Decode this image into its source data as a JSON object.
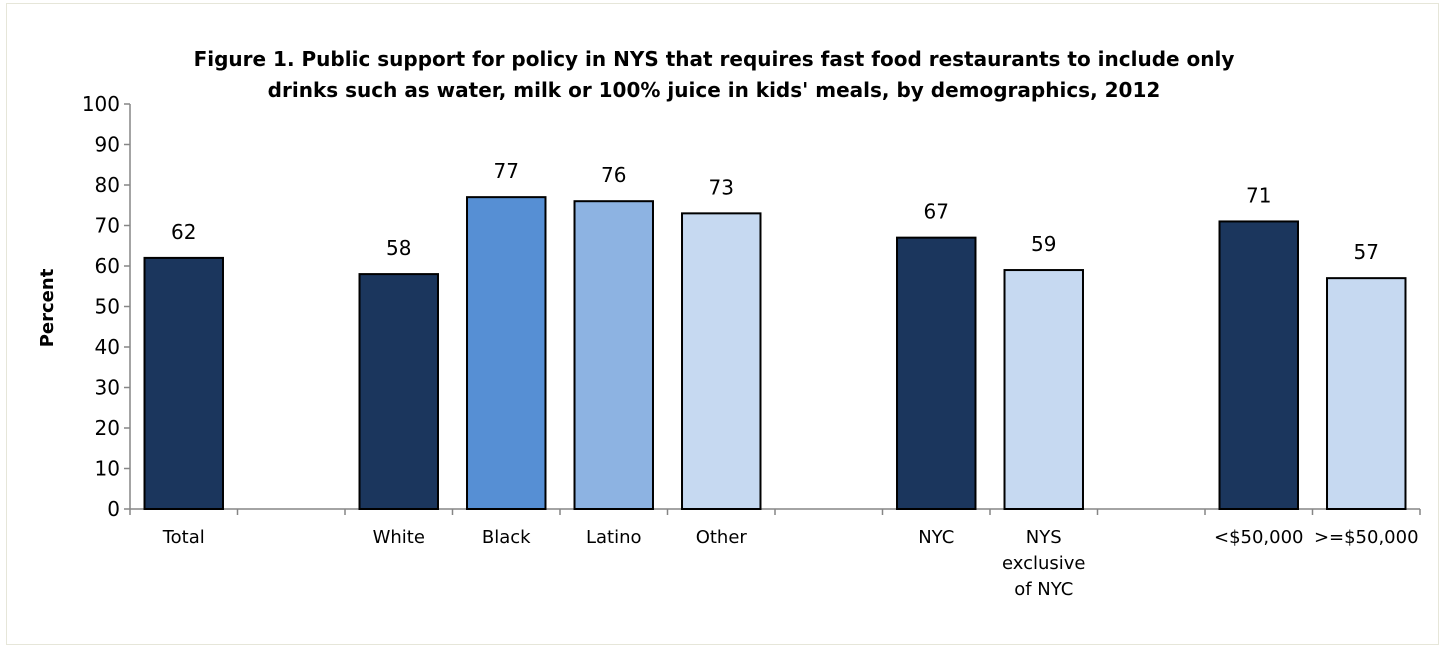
{
  "chart_data": {
    "type": "bar",
    "title_lines": [
      "Figure 1. Public support for policy in NYS that requires fast food restaurants to include only",
      "drinks such as water, milk or 100% juice in kids' meals, by demographics, 2012"
    ],
    "ylabel": "Percent",
    "xlabel": "",
    "ylim": [
      0,
      100
    ],
    "yticks": [
      0,
      10,
      20,
      30,
      40,
      50,
      60,
      70,
      80,
      90,
      100
    ],
    "categories": [
      {
        "label": [
          "Total"
        ],
        "value": 62,
        "color": "#1b365d"
      },
      {
        "label": [],
        "value": null
      },
      {
        "label": [
          "White"
        ],
        "value": 58,
        "color": "#1b365d"
      },
      {
        "label": [
          "Black"
        ],
        "value": 77,
        "color": "#568fd4"
      },
      {
        "label": [
          "Latino"
        ],
        "value": 76,
        "color": "#8db3e2"
      },
      {
        "label": [
          "Other"
        ],
        "value": 73,
        "color": "#c6d9f1"
      },
      {
        "label": [],
        "value": null
      },
      {
        "label": [
          "NYC"
        ],
        "value": 67,
        "color": "#1b365d"
      },
      {
        "label": [
          "NYS",
          "exclusive",
          "of NYC"
        ],
        "value": 59,
        "color": "#c6d9f1"
      },
      {
        "label": [],
        "value": null
      },
      {
        "label": [
          "<$50,000"
        ],
        "value": 71,
        "color": "#1b365d"
      },
      {
        "label": [
          ">=$50,000"
        ],
        "value": 57,
        "color": "#c6d9f1"
      }
    ],
    "legend": "none",
    "grid": false
  }
}
